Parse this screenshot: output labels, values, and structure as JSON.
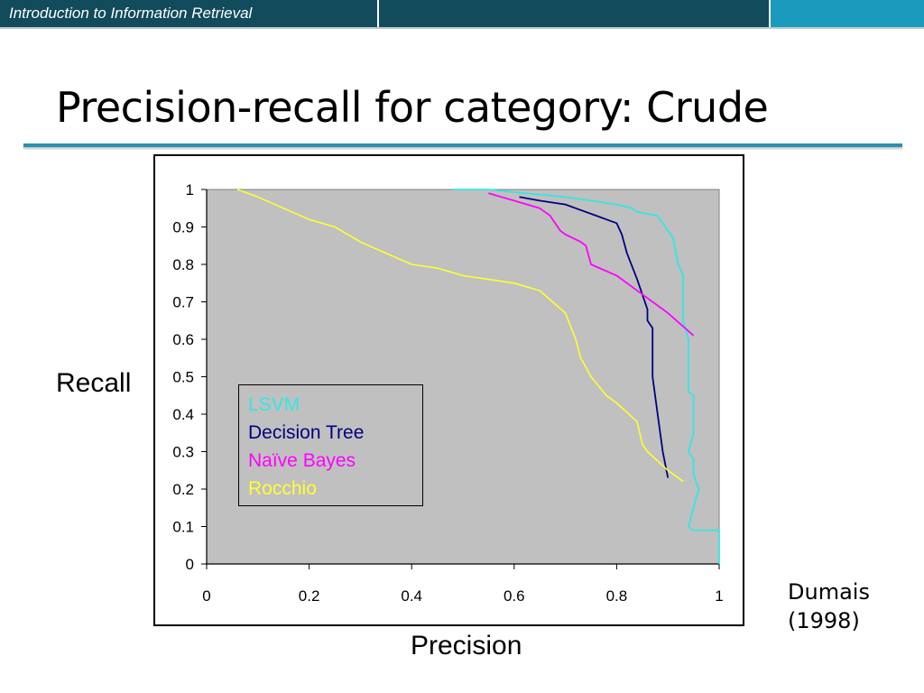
{
  "header": {
    "course_title": "Introduction to Information Retrieval"
  },
  "slide": {
    "title": "Precision-recall for category: Crude"
  },
  "source": {
    "line1": "Dumais",
    "line2": "(1998)"
  },
  "colors": {
    "header_bg": "#114b5c",
    "header_accent": "#1a9bbd",
    "plot_bg": "#c0c0c0",
    "LSVM": "#33e6e6",
    "Decision Tree": "#000080",
    "Naïve Bayes": "#ff00ff",
    "Rocchio": "#ffff33"
  },
  "chart_data": {
    "type": "line",
    "title": "",
    "xlabel": "Precision",
    "ylabel": "Recall",
    "xlim": [
      0,
      1
    ],
    "ylim": [
      0,
      1
    ],
    "x_ticks": [
      "0",
      "0.2",
      "0.4",
      "0.6",
      "0.8",
      "1"
    ],
    "y_ticks": [
      "0",
      "0.1",
      "0.2",
      "0.3",
      "0.4",
      "0.5",
      "0.6",
      "0.7",
      "0.8",
      "0.9",
      "1"
    ],
    "grid": false,
    "legend_position": "lower-left inside plot",
    "series": [
      {
        "name": "LSVM",
        "points": [
          [
            0.48,
            1.0
          ],
          [
            0.55,
            1.0
          ],
          [
            0.62,
            0.99
          ],
          [
            0.7,
            0.98
          ],
          [
            0.75,
            0.97
          ],
          [
            0.8,
            0.96
          ],
          [
            0.83,
            0.95
          ],
          [
            0.84,
            0.94
          ],
          [
            0.88,
            0.93
          ],
          [
            0.9,
            0.89
          ],
          [
            0.91,
            0.87
          ],
          [
            0.92,
            0.8
          ],
          [
            0.93,
            0.77
          ],
          [
            0.93,
            0.72
          ],
          [
            0.93,
            0.65
          ],
          [
            0.94,
            0.6
          ],
          [
            0.94,
            0.55
          ],
          [
            0.94,
            0.5
          ],
          [
            0.94,
            0.46
          ],
          [
            0.95,
            0.45
          ],
          [
            0.95,
            0.35
          ],
          [
            0.94,
            0.3
          ],
          [
            0.95,
            0.28
          ],
          [
            0.95,
            0.24
          ],
          [
            0.96,
            0.2
          ],
          [
            0.95,
            0.15
          ],
          [
            0.94,
            0.1
          ],
          [
            0.95,
            0.09
          ],
          [
            1.0,
            0.09
          ],
          [
            1.0,
            0.0
          ]
        ]
      },
      {
        "name": "Decision Tree",
        "points": [
          [
            0.61,
            0.98
          ],
          [
            0.65,
            0.97
          ],
          [
            0.7,
            0.96
          ],
          [
            0.72,
            0.95
          ],
          [
            0.76,
            0.93
          ],
          [
            0.78,
            0.92
          ],
          [
            0.8,
            0.91
          ],
          [
            0.81,
            0.88
          ],
          [
            0.82,
            0.83
          ],
          [
            0.84,
            0.76
          ],
          [
            0.85,
            0.72
          ],
          [
            0.86,
            0.68
          ],
          [
            0.86,
            0.65
          ],
          [
            0.87,
            0.63
          ],
          [
            0.87,
            0.6
          ],
          [
            0.87,
            0.52
          ],
          [
            0.87,
            0.5
          ],
          [
            0.88,
            0.4
          ],
          [
            0.89,
            0.3
          ],
          [
            0.9,
            0.23
          ]
        ]
      },
      {
        "name": "Naïve Bayes",
        "points": [
          [
            0.55,
            0.99
          ],
          [
            0.6,
            0.97
          ],
          [
            0.65,
            0.95
          ],
          [
            0.67,
            0.93
          ],
          [
            0.69,
            0.89
          ],
          [
            0.7,
            0.88
          ],
          [
            0.73,
            0.86
          ],
          [
            0.74,
            0.85
          ],
          [
            0.75,
            0.8
          ],
          [
            0.8,
            0.77
          ],
          [
            0.85,
            0.72
          ],
          [
            0.9,
            0.67
          ],
          [
            0.95,
            0.61
          ]
        ]
      },
      {
        "name": "Rocchio",
        "points": [
          [
            0.06,
            1.0
          ],
          [
            0.1,
            0.98
          ],
          [
            0.15,
            0.95
          ],
          [
            0.2,
            0.92
          ],
          [
            0.25,
            0.9
          ],
          [
            0.3,
            0.86
          ],
          [
            0.35,
            0.83
          ],
          [
            0.4,
            0.8
          ],
          [
            0.45,
            0.79
          ],
          [
            0.5,
            0.77
          ],
          [
            0.55,
            0.76
          ],
          [
            0.6,
            0.75
          ],
          [
            0.65,
            0.73
          ],
          [
            0.7,
            0.67
          ],
          [
            0.72,
            0.6
          ],
          [
            0.73,
            0.55
          ],
          [
            0.75,
            0.5
          ],
          [
            0.78,
            0.45
          ],
          [
            0.8,
            0.43
          ],
          [
            0.84,
            0.38
          ],
          [
            0.85,
            0.32
          ],
          [
            0.86,
            0.3
          ],
          [
            0.9,
            0.25
          ],
          [
            0.93,
            0.22
          ]
        ]
      }
    ]
  }
}
